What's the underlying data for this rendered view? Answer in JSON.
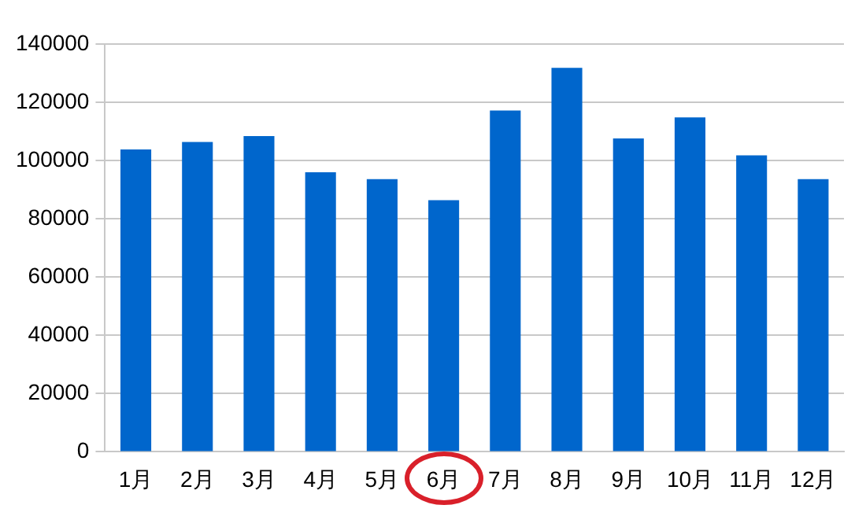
{
  "chart_data": {
    "type": "bar",
    "categories": [
      "1月",
      "2月",
      "3月",
      "4月",
      "5月",
      "6月",
      "7月",
      "8月",
      "9月",
      "10月",
      "11月",
      "12月"
    ],
    "values": [
      103800,
      106400,
      108400,
      96000,
      93600,
      86400,
      117200,
      131800,
      107600,
      114800,
      101800,
      93600
    ],
    "color": "#0066cc",
    "ylim": [
      0,
      140000
    ],
    "yticks": [
      0,
      20000,
      40000,
      60000,
      80000,
      100000,
      120000,
      140000
    ],
    "grid": "y"
  }
}
